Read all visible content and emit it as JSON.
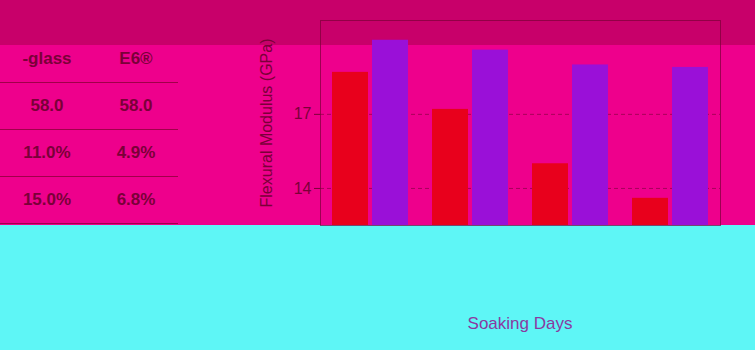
{
  "table": {
    "header": [
      "-glass",
      "E6®"
    ],
    "rows": [
      [
        "58.0",
        "58.0"
      ],
      [
        "11.0%",
        "4.9%"
      ],
      [
        "15.0%",
        "6.8%"
      ]
    ]
  },
  "chart_data": {
    "type": "bar",
    "ylabel": "Flexural Modulus (GPa)",
    "xlabel": "Soaking Days",
    "categories": [
      null,
      null,
      null,
      null
    ],
    "series": [
      {
        "color": "#e8001c",
        "values": [
          18.7,
          17.2,
          15.0,
          13.6
        ]
      },
      {
        "color": "#9a10d8",
        "values": [
          20.0,
          19.6,
          19.0,
          18.9
        ]
      }
    ],
    "ylim": [
      12.5,
      20.8
    ],
    "yticks": [
      14,
      17
    ],
    "grid": true
  }
}
